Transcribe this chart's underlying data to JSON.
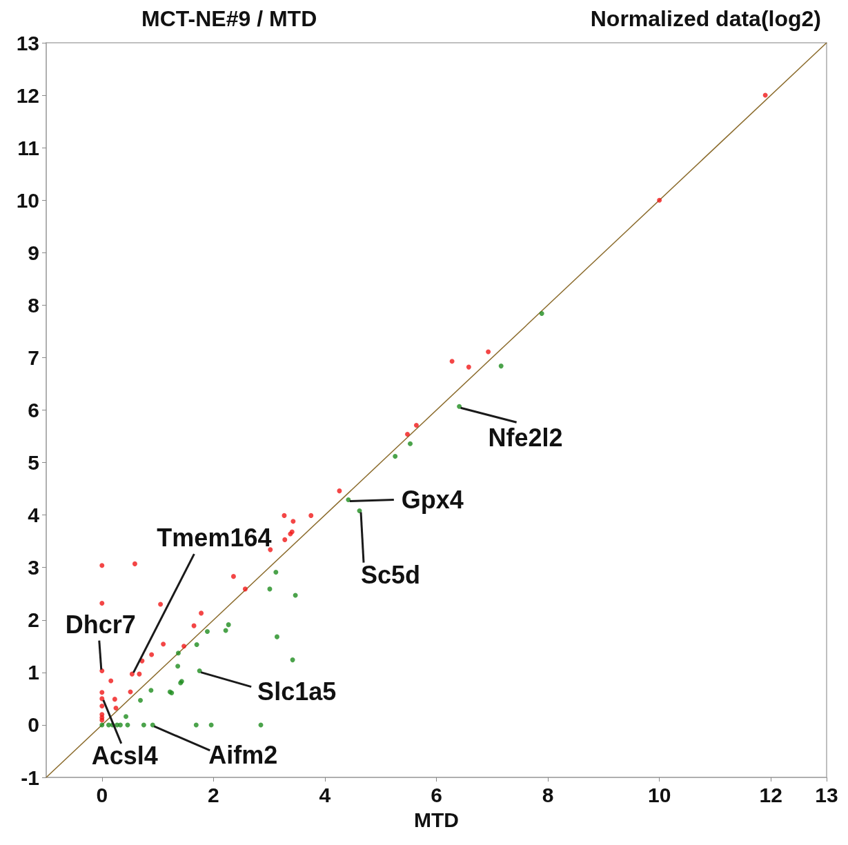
{
  "chart_data": {
    "type": "scatter",
    "title": "MCT-NE#9 / MTD",
    "subtitle": "Normalized data(log2)",
    "xlabel": "MTD",
    "xlim": [
      -1,
      13
    ],
    "xticks": [
      0,
      2,
      4,
      6,
      8,
      10,
      12,
      13
    ],
    "ylim": [
      -1,
      13
    ],
    "yticks": [
      -1,
      0,
      1,
      2,
      3,
      4,
      5,
      6,
      7,
      8,
      9,
      10,
      11,
      12,
      13
    ],
    "marker": "circle",
    "series": [
      {
        "color": "#f01818",
        "x": [
          11.9,
          10.0,
          6.93,
          6.28,
          6.58,
          5.64,
          5.48,
          4.26,
          3.27,
          3.43,
          3.75,
          3.41,
          3.38,
          3.28,
          3.02,
          2.36,
          2.57,
          0,
          0.59,
          0,
          1.05,
          1.78,
          1.65,
          1.1,
          1.47,
          0.89,
          0.72,
          0,
          0.54,
          0.67,
          0.16,
          0.51,
          0,
          0,
          0.23,
          0.25,
          0,
          0,
          0,
          0
        ],
        "values": [
          12.0,
          10.0,
          7.11,
          6.93,
          6.82,
          5.71,
          5.54,
          4.46,
          3.99,
          3.88,
          3.99,
          3.68,
          3.64,
          3.53,
          3.34,
          2.83,
          2.59,
          3.04,
          3.07,
          2.32,
          2.3,
          2.13,
          1.89,
          1.54,
          1.5,
          1.34,
          1.22,
          1.03,
          0.97,
          0.97,
          0.84,
          0.63,
          0.62,
          0.5,
          0.49,
          0.32,
          0.36,
          0.2,
          0.14,
          0.09
        ]
      },
      {
        "color": "#1e8c1e",
        "x": [
          7.89,
          7.16,
          6.41,
          5.53,
          5.26,
          4.42,
          4.62,
          3.12,
          3.01,
          3.47,
          3.14,
          3.42,
          2.27,
          2.22,
          1.89,
          1.7,
          1.37,
          1.36,
          1.75,
          1.43,
          1.41,
          1.22,
          1.25,
          0.88,
          0.69,
          0.43,
          0,
          0.12,
          0.19,
          0.27,
          0.33,
          0.46,
          0.75,
          0.91,
          1.69,
          1.96,
          2.85
        ],
        "values": [
          7.84,
          6.84,
          6.07,
          5.36,
          5.12,
          4.29,
          4.08,
          2.91,
          2.59,
          2.47,
          1.68,
          1.24,
          1.91,
          1.8,
          1.78,
          1.53,
          1.37,
          1.12,
          1.03,
          0.83,
          0.8,
          0.63,
          0.61,
          0.66,
          0.47,
          0.16,
          0,
          0,
          0,
          0,
          0,
          0,
          0,
          0,
          0,
          0,
          0
        ]
      },
      {
        "type": "line",
        "color": "#8a6a2a",
        "marker": "none",
        "x": [
          -1,
          13
        ],
        "values": [
          -1,
          13
        ]
      }
    ],
    "annotations": [
      {
        "text": "Nfe2l2",
        "x": 6.41,
        "y": 6.07
      },
      {
        "text": "Gpx4",
        "x": 4.42,
        "y": 4.29
      },
      {
        "text": "Sc5d",
        "x": 4.62,
        "y": 4.08
      },
      {
        "text": "Tmem164",
        "x": 0.54,
        "y": 0.97
      },
      {
        "text": "Dhcr7",
        "x": 0,
        "y": 1.03
      },
      {
        "text": "Slc1a5",
        "x": 1.75,
        "y": 1.03
      },
      {
        "text": "Acsl4",
        "x": 0,
        "y": 0.5
      },
      {
        "text": "Aifm2",
        "x": 0.91,
        "y": 0
      }
    ]
  }
}
